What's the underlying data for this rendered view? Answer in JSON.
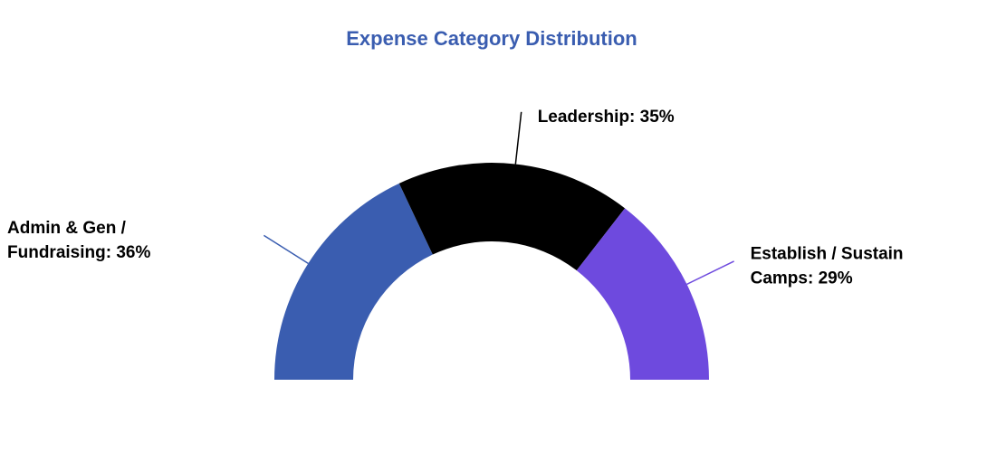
{
  "chart_data": {
    "type": "half-donut",
    "title": "Expense Category Distribution",
    "values": [
      36,
      35,
      29
    ],
    "value_labels": [
      [
        "Admin & Gen /",
        "Fundraising: 36%"
      ],
      [
        "Leadership: 35%"
      ],
      [
        "Establish / Sustain",
        "Camps: 29%"
      ]
    ],
    "colors": [
      "#3a5db0",
      "#000000",
      "#6e4ade"
    ]
  }
}
